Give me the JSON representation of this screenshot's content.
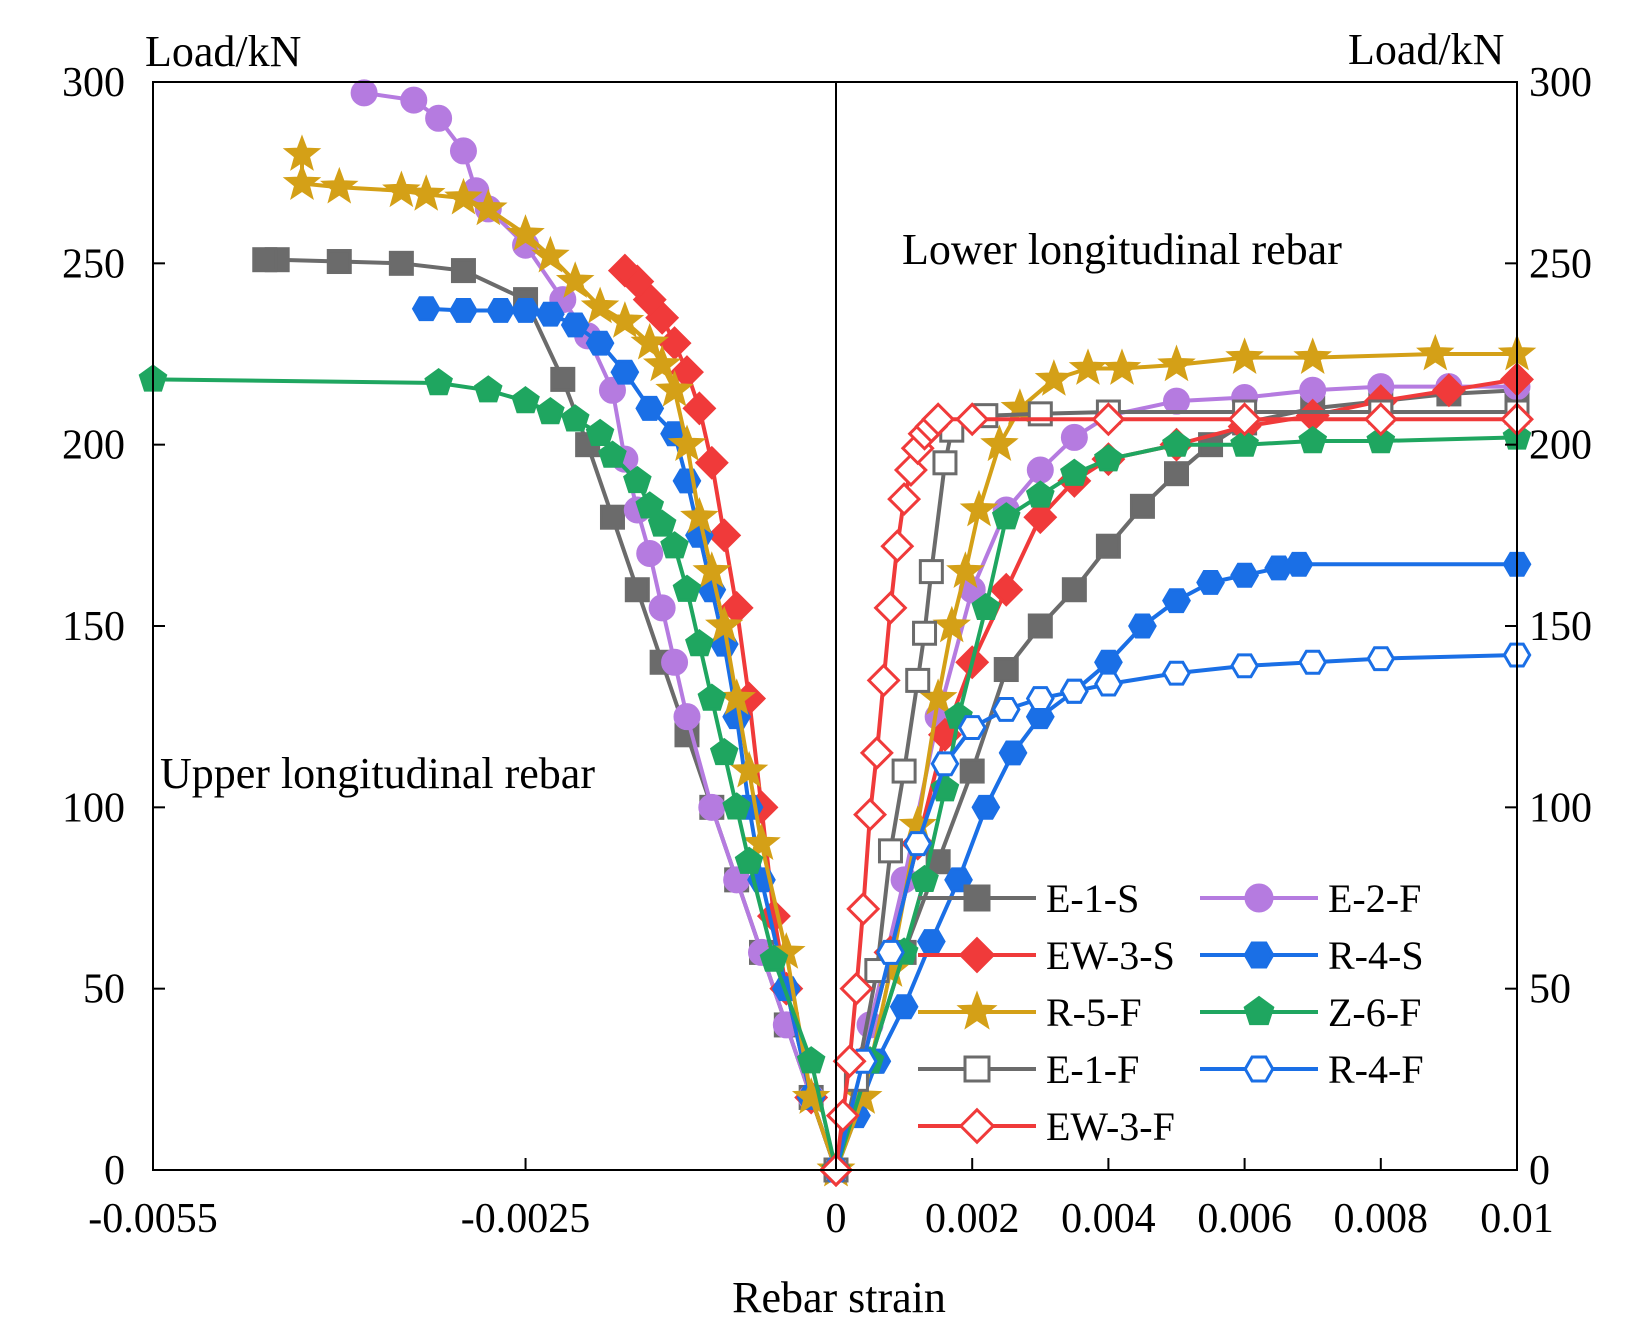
{
  "chart_data": {
    "type": "line",
    "xlabel": "Rebar strain",
    "ylabel_left": "Load/kN",
    "ylabel_right": "Load/kN",
    "ylim": [
      0,
      300
    ],
    "y_ticks": [
      0,
      50,
      100,
      150,
      200,
      250,
      300
    ],
    "y_tick_labels": [
      "0",
      "50",
      "100",
      "150",
      "200",
      "250",
      "300"
    ],
    "x_left_range": [
      -0.0055,
      0
    ],
    "x_right_range": [
      0,
      0.01
    ],
    "x_ticks_left": [
      -0.0055,
      -0.0025,
      0
    ],
    "x_tick_labels_left": [
      "-0.0055",
      "-0.0025",
      "0"
    ],
    "x_ticks_right": [
      0.002,
      0.004,
      0.006,
      0.008,
      0.01
    ],
    "x_tick_labels_right": [
      "0.002",
      "0.004",
      "0.006",
      "0.008",
      "0.01"
    ],
    "annotations": {
      "upper": "Upper longitudinal rebar",
      "lower": "Lower longitudinal rebar"
    },
    "legend_position": "bottom-right",
    "series": [
      {
        "name": "E-1-S",
        "color": "#6b6b6b",
        "marker": "square",
        "filled": true,
        "upper": [
          [
            0,
            0
          ],
          [
            -0.0002,
            20
          ],
          [
            -0.0004,
            40
          ],
          [
            -0.0006,
            60
          ],
          [
            -0.0008,
            80
          ],
          [
            -0.001,
            100
          ],
          [
            -0.0012,
            120
          ],
          [
            -0.0014,
            140
          ],
          [
            -0.0016,
            160
          ],
          [
            -0.0018,
            180
          ],
          [
            -0.002,
            200
          ],
          [
            -0.0022,
            218
          ],
          [
            -0.0025,
            240
          ],
          [
            -0.003,
            248
          ],
          [
            -0.0035,
            250
          ],
          [
            -0.004,
            250.5
          ],
          [
            -0.0045,
            251
          ],
          [
            -0.0046,
            251
          ]
        ],
        "lower": [
          [
            0,
            0
          ],
          [
            0.0005,
            30
          ],
          [
            0.001,
            60
          ],
          [
            0.0015,
            85
          ],
          [
            0.002,
            110
          ],
          [
            0.0025,
            138
          ],
          [
            0.003,
            150
          ],
          [
            0.0035,
            160
          ],
          [
            0.004,
            172
          ],
          [
            0.0045,
            183
          ],
          [
            0.005,
            192
          ],
          [
            0.0055,
            200
          ],
          [
            0.006,
            206
          ],
          [
            0.007,
            210
          ],
          [
            0.008,
            212
          ],
          [
            0.009,
            214
          ],
          [
            0.01,
            215
          ]
        ]
      },
      {
        "name": "E-2-F",
        "color": "#b57be0",
        "marker": "circle",
        "filled": true,
        "upper": [
          [
            0,
            0
          ],
          [
            -0.0002,
            20
          ],
          [
            -0.0004,
            40
          ],
          [
            -0.0006,
            60
          ],
          [
            -0.0008,
            80
          ],
          [
            -0.001,
            100
          ],
          [
            -0.0012,
            125
          ],
          [
            -0.0013,
            140
          ],
          [
            -0.0014,
            155
          ],
          [
            -0.0015,
            170
          ],
          [
            -0.0016,
            182
          ],
          [
            -0.0017,
            196
          ],
          [
            -0.0018,
            215
          ],
          [
            -0.002,
            230
          ],
          [
            -0.0022,
            240
          ],
          [
            -0.0025,
            255
          ],
          [
            -0.0028,
            265
          ],
          [
            -0.0029,
            270
          ],
          [
            -0.003,
            281
          ],
          [
            -0.0032,
            290
          ],
          [
            -0.0034,
            295
          ],
          [
            -0.0038,
            297
          ]
        ],
        "lower": [
          [
            0,
            0
          ],
          [
            0.0005,
            40
          ],
          [
            0.001,
            80
          ],
          [
            0.0015,
            125
          ],
          [
            0.002,
            160
          ],
          [
            0.0025,
            182
          ],
          [
            0.003,
            193
          ],
          [
            0.0035,
            202
          ],
          [
            0.004,
            208
          ],
          [
            0.005,
            212
          ],
          [
            0.006,
            213
          ],
          [
            0.007,
            215
          ],
          [
            0.008,
            216
          ],
          [
            0.009,
            216
          ],
          [
            0.01,
            216
          ]
        ]
      },
      {
        "name": "EW-3-S",
        "color": "#f03a3a",
        "marker": "diamond",
        "filled": true,
        "upper": [
          [
            0,
            0
          ],
          [
            -0.0002,
            20
          ],
          [
            -0.0004,
            50
          ],
          [
            -0.0005,
            70
          ],
          [
            -0.0006,
            100
          ],
          [
            -0.0007,
            130
          ],
          [
            -0.0008,
            155
          ],
          [
            -0.0009,
            175
          ],
          [
            -0.001,
            195
          ],
          [
            -0.0011,
            210
          ],
          [
            -0.0012,
            220
          ],
          [
            -0.0013,
            228
          ],
          [
            -0.0014,
            235
          ],
          [
            -0.0015,
            240
          ],
          [
            -0.0016,
            245
          ],
          [
            -0.0017,
            248
          ]
        ],
        "lower": [
          [
            0,
            0
          ],
          [
            0.0004,
            30
          ],
          [
            0.0008,
            60
          ],
          [
            0.0012,
            90
          ],
          [
            0.0016,
            120
          ],
          [
            0.002,
            140
          ],
          [
            0.0025,
            160
          ],
          [
            0.003,
            180
          ],
          [
            0.0035,
            190
          ],
          [
            0.004,
            196
          ],
          [
            0.005,
            200
          ],
          [
            0.006,
            205
          ],
          [
            0.007,
            208
          ],
          [
            0.008,
            212
          ],
          [
            0.009,
            215
          ],
          [
            0.01,
            218
          ]
        ]
      },
      {
        "name": "R-4-S",
        "color": "#1a6fe6",
        "marker": "hexagon",
        "filled": true,
        "upper": [
          [
            0,
            0
          ],
          [
            -0.0002,
            20
          ],
          [
            -0.0004,
            50
          ],
          [
            -0.0006,
            80
          ],
          [
            -0.0007,
            100
          ],
          [
            -0.0008,
            125
          ],
          [
            -0.0009,
            145
          ],
          [
            -0.001,
            160
          ],
          [
            -0.0011,
            175
          ],
          [
            -0.0012,
            190
          ],
          [
            -0.0013,
            203
          ],
          [
            -0.0015,
            210
          ],
          [
            -0.0017,
            220
          ],
          [
            -0.0019,
            228
          ],
          [
            -0.0021,
            233
          ],
          [
            -0.0023,
            236
          ],
          [
            -0.0025,
            237
          ],
          [
            -0.0027,
            237
          ],
          [
            -0.003,
            237
          ],
          [
            -0.0033,
            237.5
          ]
        ],
        "lower": [
          [
            0,
            0
          ],
          [
            0.0003,
            15
          ],
          [
            0.0006,
            30
          ],
          [
            0.001,
            45
          ],
          [
            0.0014,
            63
          ],
          [
            0.0018,
            80
          ],
          [
            0.0022,
            100
          ],
          [
            0.0026,
            115
          ],
          [
            0.003,
            125
          ],
          [
            0.0035,
            132
          ],
          [
            0.004,
            140
          ],
          [
            0.0045,
            150
          ],
          [
            0.005,
            157
          ],
          [
            0.0055,
            162
          ],
          [
            0.006,
            164
          ],
          [
            0.0065,
            166
          ],
          [
            0.0068,
            167
          ],
          [
            0.01,
            167
          ]
        ]
      },
      {
        "name": "R-5-F",
        "color": "#d4a017",
        "marker": "star",
        "filled": true,
        "upper": [
          [
            0,
            0
          ],
          [
            -0.0002,
            20
          ],
          [
            -0.0004,
            60
          ],
          [
            -0.0006,
            90
          ],
          [
            -0.0007,
            110
          ],
          [
            -0.0008,
            130
          ],
          [
            -0.0009,
            150
          ],
          [
            -0.001,
            165
          ],
          [
            -0.0011,
            180
          ],
          [
            -0.0012,
            200
          ],
          [
            -0.0013,
            215
          ],
          [
            -0.0014,
            222
          ],
          [
            -0.0015,
            228
          ],
          [
            -0.0017,
            234
          ],
          [
            -0.0019,
            238
          ],
          [
            -0.0021,
            245
          ],
          [
            -0.0023,
            252
          ],
          [
            -0.0025,
            258
          ],
          [
            -0.0028,
            265
          ],
          [
            -0.003,
            268
          ],
          [
            -0.0033,
            269
          ],
          [
            -0.0035,
            270
          ],
          [
            -0.004,
            271
          ],
          [
            -0.0043,
            272
          ],
          [
            -0.0043,
            280
          ]
        ],
        "lower": [
          [
            0,
            0
          ],
          [
            0.0004,
            20
          ],
          [
            0.0008,
            55
          ],
          [
            0.0012,
            95
          ],
          [
            0.0015,
            130
          ],
          [
            0.0017,
            150
          ],
          [
            0.0019,
            165
          ],
          [
            0.0021,
            182
          ],
          [
            0.0024,
            200
          ],
          [
            0.0027,
            210
          ],
          [
            0.0032,
            218
          ],
          [
            0.0037,
            221
          ],
          [
            0.0042,
            221
          ],
          [
            0.005,
            222
          ],
          [
            0.006,
            224
          ],
          [
            0.007,
            224
          ],
          [
            0.0088,
            225
          ],
          [
            0.01,
            225
          ]
        ]
      },
      {
        "name": "Z-6-F",
        "color": "#1fa660",
        "marker": "pentagon",
        "filled": true,
        "upper": [
          [
            0,
            0
          ],
          [
            -0.0002,
            30
          ],
          [
            -0.0005,
            58
          ],
          [
            -0.0007,
            85
          ],
          [
            -0.0008,
            100
          ],
          [
            -0.0009,
            115
          ],
          [
            -0.001,
            130
          ],
          [
            -0.0011,
            145
          ],
          [
            -0.0012,
            160
          ],
          [
            -0.0013,
            172
          ],
          [
            -0.0014,
            178
          ],
          [
            -0.0015,
            183
          ],
          [
            -0.0016,
            190
          ],
          [
            -0.0018,
            197
          ],
          [
            -0.0019,
            203
          ],
          [
            -0.0021,
            207
          ],
          [
            -0.0023,
            209
          ],
          [
            -0.0025,
            212
          ],
          [
            -0.0028,
            215
          ],
          [
            -0.0032,
            217
          ],
          [
            -0.0055,
            218
          ]
        ],
        "lower": [
          [
            0,
            0
          ],
          [
            0.0005,
            30
          ],
          [
            0.001,
            60
          ],
          [
            0.0013,
            80
          ],
          [
            0.0016,
            105
          ],
          [
            0.0018,
            125
          ],
          [
            0.0022,
            155
          ],
          [
            0.0025,
            180
          ],
          [
            0.003,
            186
          ],
          [
            0.0035,
            192
          ],
          [
            0.004,
            196
          ],
          [
            0.005,
            200
          ],
          [
            0.006,
            200
          ],
          [
            0.007,
            201
          ],
          [
            0.008,
            201
          ],
          [
            0.01,
            202
          ]
        ]
      },
      {
        "name": "E-1-F",
        "color": "#6b6b6b",
        "marker": "square",
        "filled": false,
        "upper": [],
        "lower": [
          [
            0,
            0
          ],
          [
            0.0003,
            25
          ],
          [
            0.0006,
            55
          ],
          [
            0.0008,
            88
          ],
          [
            0.001,
            110
          ],
          [
            0.0012,
            135
          ],
          [
            0.0013,
            148
          ],
          [
            0.0014,
            165
          ],
          [
            0.0016,
            195
          ],
          [
            0.0017,
            204
          ],
          [
            0.0022,
            208
          ],
          [
            0.003,
            208.5
          ],
          [
            0.004,
            209
          ],
          [
            0.006,
            209
          ],
          [
            0.008,
            209
          ],
          [
            0.01,
            209
          ]
        ]
      },
      {
        "name": "R-4-F",
        "color": "#1a6fe6",
        "marker": "hexagon",
        "filled": false,
        "upper": [],
        "lower": [
          [
            0,
            0
          ],
          [
            0.0004,
            30
          ],
          [
            0.0008,
            60
          ],
          [
            0.0012,
            90
          ],
          [
            0.0016,
            112
          ],
          [
            0.002,
            122
          ],
          [
            0.0025,
            127
          ],
          [
            0.003,
            130
          ],
          [
            0.0035,
            132
          ],
          [
            0.004,
            134
          ],
          [
            0.005,
            137
          ],
          [
            0.006,
            139
          ],
          [
            0.007,
            140
          ],
          [
            0.008,
            141
          ],
          [
            0.01,
            142
          ]
        ]
      },
      {
        "name": "EW-3-F",
        "color": "#f03a3a",
        "marker": "diamond",
        "filled": false,
        "upper": [],
        "lower": [
          [
            0,
            0
          ],
          [
            0.0001,
            15
          ],
          [
            0.0002,
            30
          ],
          [
            0.0003,
            50
          ],
          [
            0.0004,
            72
          ],
          [
            0.0005,
            98
          ],
          [
            0.0006,
            115
          ],
          [
            0.0007,
            135
          ],
          [
            0.0008,
            155
          ],
          [
            0.0009,
            172
          ],
          [
            0.001,
            185
          ],
          [
            0.0011,
            193
          ],
          [
            0.0012,
            199
          ],
          [
            0.0013,
            203
          ],
          [
            0.0014,
            205
          ],
          [
            0.0015,
            207
          ],
          [
            0.002,
            207
          ],
          [
            0.004,
            207
          ],
          [
            0.006,
            207
          ],
          [
            0.008,
            207
          ],
          [
            0.01,
            207
          ]
        ]
      }
    ]
  }
}
